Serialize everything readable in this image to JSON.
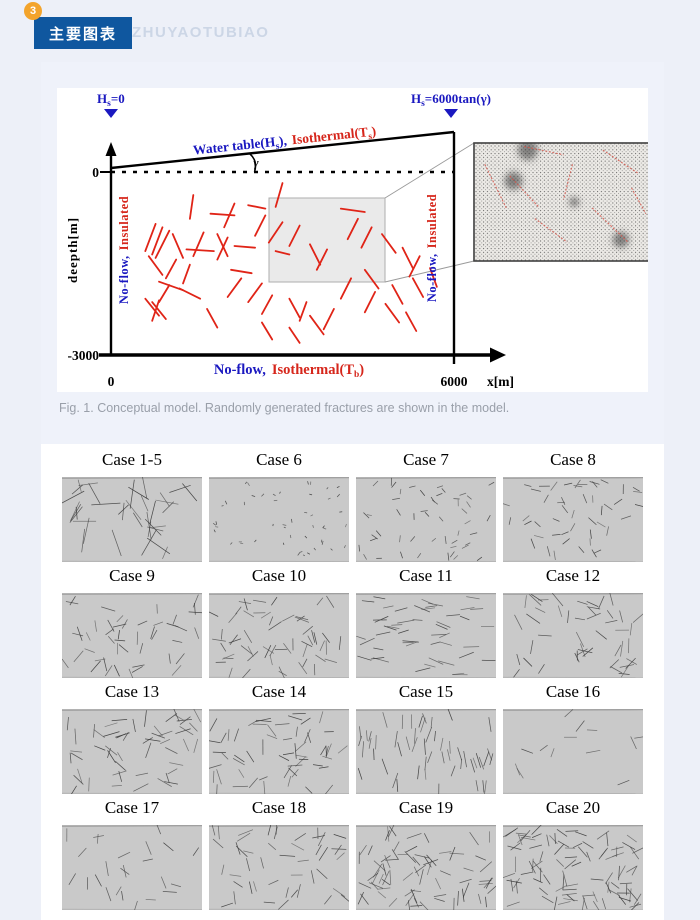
{
  "header": {
    "badge": "3",
    "title": "主要图表",
    "subtitle": "ZHUYAOTUBIAO"
  },
  "colors": {
    "accent_blue": "#0f579f",
    "figure_blue": "#1a18c0",
    "figure_red": "#d6261b",
    "badge_orange": "#f3a42c",
    "panel_gray": "#c9c9c9",
    "page_bg": "#edf0f8"
  },
  "figure1": {
    "caption": "Fig. 1. Conceptual model. Randomly generated fractures are shown in the model.",
    "labels": {
      "hs_left": {
        "p1": "H",
        "p2": "s",
        "p3": "=0"
      },
      "hs_right": {
        "p1": "H",
        "p2": "s",
        "p3": "=6000tan(γ)"
      },
      "water": {
        "b1": "Water table(H",
        "b2": "s",
        "b3": "),",
        "r1": "Isothermal(T",
        "r2": "s",
        "r3": ")"
      },
      "bottom": {
        "b": "No-flow,",
        "r1": "Isothermal(T",
        "r2": "b",
        "r3": ")"
      },
      "side": {
        "b": "No-flow,",
        "r": "Insulated"
      },
      "depth": "deepth[m]",
      "gamma": "γ",
      "axis": {
        "y0": "0",
        "ybot": "-3000",
        "x0": "0",
        "x1": "6000",
        "xlab": "x[m]"
      }
    },
    "fractures": [
      [
        50,
        3,
        48,
        17
      ],
      [
        24,
        10,
        23,
        24
      ],
      [
        36,
        15,
        33,
        29
      ],
      [
        29,
        21,
        36,
        22
      ],
      [
        40,
        16,
        45,
        18
      ],
      [
        45,
        22,
        42,
        34
      ],
      [
        50,
        26,
        46,
        38
      ],
      [
        55,
        28,
        52,
        40
      ],
      [
        67,
        18,
        74,
        20
      ],
      [
        72,
        24,
        69,
        36
      ],
      [
        76,
        29,
        73,
        41
      ],
      [
        79,
        33,
        83,
        44
      ],
      [
        13,
        27,
        10,
        43
      ],
      [
        15,
        29,
        12,
        45
      ],
      [
        17,
        31,
        13,
        47
      ],
      [
        18,
        33,
        21,
        47
      ],
      [
        27,
        32,
        24,
        46
      ],
      [
        31,
        33,
        34,
        46
      ],
      [
        34,
        35,
        31,
        48
      ],
      [
        22,
        42,
        30,
        43
      ],
      [
        36,
        40,
        42,
        41
      ],
      [
        11,
        46,
        15,
        57
      ],
      [
        19,
        48,
        16,
        59
      ],
      [
        23,
        51,
        21,
        62
      ],
      [
        48,
        43,
        52,
        45
      ],
      [
        58,
        39,
        61,
        51
      ],
      [
        63,
        42,
        60,
        54
      ],
      [
        85,
        41,
        88,
        53
      ],
      [
        90,
        46,
        87,
        58
      ],
      [
        93,
        53,
        95,
        64
      ],
      [
        14,
        61,
        21,
        66
      ],
      [
        17,
        63,
        14,
        73
      ],
      [
        20,
        65,
        26,
        71
      ],
      [
        35,
        54,
        41,
        56
      ],
      [
        38,
        59,
        34,
        70
      ],
      [
        44,
        62,
        40,
        73
      ],
      [
        47,
        69,
        44,
        80
      ],
      [
        52,
        71,
        55,
        82
      ],
      [
        57,
        73,
        55,
        84
      ],
      [
        74,
        54,
        78,
        65
      ],
      [
        70,
        59,
        67,
        71
      ],
      [
        77,
        67,
        74,
        79
      ],
      [
        82,
        63,
        85,
        74
      ],
      [
        88,
        59,
        91,
        70
      ],
      [
        10,
        71,
        14,
        81
      ],
      [
        12,
        73,
        16,
        83
      ],
      [
        14,
        72,
        12,
        84
      ],
      [
        65,
        77,
        62,
        89
      ],
      [
        58,
        81,
        62,
        92
      ],
      [
        80,
        74,
        84,
        85
      ],
      [
        86,
        79,
        89,
        90
      ],
      [
        28,
        77,
        31,
        88
      ],
      [
        44,
        85,
        47,
        95
      ],
      [
        52,
        88,
        55,
        97
      ]
    ],
    "inset_fractures": [
      [
        6,
        18,
        18,
        55
      ],
      [
        20,
        28,
        36,
        54
      ],
      [
        28,
        3,
        50,
        10
      ],
      [
        55,
        18,
        50,
        48
      ],
      [
        72,
        6,
        92,
        26
      ],
      [
        66,
        55,
        86,
        84
      ],
      [
        34,
        64,
        52,
        84
      ],
      [
        88,
        38,
        96,
        60
      ]
    ],
    "inset_smudges": [
      [
        30,
        6,
        10
      ],
      [
        22,
        32,
        9
      ],
      [
        82,
        82,
        8
      ],
      [
        56,
        50,
        5
      ]
    ]
  },
  "cases": [
    {
      "label": "Case 1-5",
      "seed": 101,
      "count": 36,
      "len_min": 12,
      "len_max": 30,
      "orient": "any"
    },
    {
      "label": "Case 6",
      "seed": 206,
      "count": 48,
      "len_min": 2,
      "len_max": 4,
      "orient": "any"
    },
    {
      "label": "Case 7",
      "seed": 307,
      "count": 50,
      "len_min": 5,
      "len_max": 8,
      "orient": "any"
    },
    {
      "label": "Case 8",
      "seed": 408,
      "count": 48,
      "len_min": 7,
      "len_max": 11,
      "orient": "any"
    },
    {
      "label": "Case 9",
      "seed": 509,
      "count": 46,
      "len_min": 9,
      "len_max": 15,
      "orient": "any"
    },
    {
      "label": "Case 10",
      "seed": 610,
      "count": 56,
      "len_min": 9,
      "len_max": 16,
      "orient": "any"
    },
    {
      "label": "Case 11",
      "seed": 711,
      "count": 48,
      "len_min": 10,
      "len_max": 18,
      "orient": "horizontal"
    },
    {
      "label": "Case 12",
      "seed": 812,
      "count": 48,
      "len_min": 10,
      "len_max": 17,
      "orient": "any"
    },
    {
      "label": "Case 13",
      "seed": 913,
      "count": 54,
      "len_min": 10,
      "len_max": 17,
      "orient": "any"
    },
    {
      "label": "Case 14",
      "seed": 914,
      "count": 58,
      "len_min": 9,
      "len_max": 16,
      "orient": "any"
    },
    {
      "label": "Case 15",
      "seed": 915,
      "count": 52,
      "len_min": 10,
      "len_max": 17,
      "orient": "vertical"
    },
    {
      "label": "Case 16",
      "seed": 916,
      "count": 13,
      "len_min": 9,
      "len_max": 15,
      "orient": "any"
    },
    {
      "label": "Case 17",
      "seed": 917,
      "count": 24,
      "len_min": 9,
      "len_max": 15,
      "orient": "any"
    },
    {
      "label": "Case 18",
      "seed": 918,
      "count": 46,
      "len_min": 10,
      "len_max": 16,
      "orient": "any"
    },
    {
      "label": "Case 19",
      "seed": 919,
      "count": 76,
      "len_min": 10,
      "len_max": 16,
      "orient": "any"
    },
    {
      "label": "Case 20",
      "seed": 920,
      "count": 96,
      "len_min": 10,
      "len_max": 16,
      "orient": "any"
    }
  ]
}
